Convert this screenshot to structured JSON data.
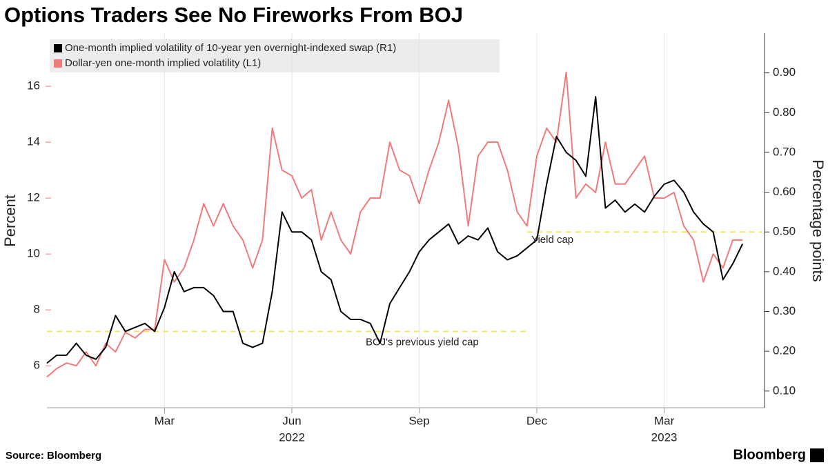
{
  "chart_data": {
    "type": "line",
    "title": "Options Traders See No Fireworks From BOJ",
    "y_label": "Percent",
    "y2_label": "Percentage points",
    "source": "Source: Bloomberg",
    "brand": "Bloomberg",
    "years": [
      "2022",
      "2023"
    ],
    "categories": [
      null,
      null,
      null,
      null,
      null,
      null,
      null,
      null,
      null,
      null,
      null,
      null,
      "Mar",
      null,
      null,
      null,
      null,
      null,
      null,
      null,
      null,
      null,
      null,
      null,
      null,
      "Jun",
      null,
      null,
      null,
      null,
      null,
      null,
      null,
      null,
      null,
      null,
      null,
      null,
      "Sep",
      null,
      null,
      null,
      null,
      null,
      null,
      null,
      null,
      null,
      null,
      null,
      "Dec",
      null,
      null,
      null,
      null,
      null,
      null,
      null,
      null,
      null,
      null,
      null,
      null,
      "Mar",
      null,
      null,
      null,
      null,
      null,
      null,
      null,
      null
    ],
    "series": [
      {
        "name": "One-month implied volatility of 10-year yen overnight-indexed swap (R1)",
        "color": "#000000",
        "axis": "y2",
        "values": [
          0.17,
          0.19,
          0.19,
          0.22,
          0.19,
          0.18,
          0.21,
          0.29,
          0.25,
          0.26,
          0.27,
          0.25,
          0.31,
          0.4,
          0.35,
          0.36,
          0.36,
          0.34,
          0.3,
          0.3,
          0.22,
          0.21,
          0.22,
          0.35,
          0.55,
          0.5,
          0.5,
          0.48,
          0.4,
          0.38,
          0.3,
          0.28,
          0.28,
          0.27,
          0.22,
          0.32,
          0.36,
          0.4,
          0.45,
          0.48,
          0.5,
          0.52,
          0.47,
          0.49,
          0.48,
          0.51,
          0.45,
          0.43,
          0.44,
          0.46,
          0.48,
          0.62,
          0.74,
          0.7,
          0.68,
          0.64,
          0.84,
          0.56,
          0.58,
          0.55,
          0.57,
          0.55,
          0.59,
          0.62,
          0.63,
          0.6,
          0.55,
          0.52,
          0.5,
          0.38,
          0.42,
          0.47
        ]
      },
      {
        "name": "Dollar-yen one-month implied volatility (L1)",
        "color": "#f07a78",
        "values": [
          5.6,
          5.9,
          6.1,
          6.0,
          6.5,
          6.0,
          6.8,
          6.5,
          7.2,
          7.0,
          7.3,
          7.3,
          9.8,
          9.0,
          9.5,
          10.5,
          11.8,
          11.0,
          11.8,
          11.0,
          10.5,
          9.5,
          10.5,
          14.5,
          13.0,
          12.8,
          12.0,
          12.3,
          10.5,
          11.5,
          10.5,
          10.0,
          11.5,
          12.0,
          12.0,
          14.0,
          13.0,
          12.8,
          11.8,
          13.0,
          14.0,
          15.5,
          13.8,
          11.0,
          13.5,
          14.0,
          14.0,
          13.0,
          11.5,
          11.0,
          13.5,
          14.5,
          14.0,
          16.5,
          12.0,
          12.5,
          12.2,
          14.0,
          12.5,
          12.5,
          13.0,
          13.5,
          12.0,
          12.0,
          12.2,
          11.0,
          10.5,
          9.0,
          10.0,
          9.5,
          10.5,
          10.5
        ]
      }
    ],
    "ylim": [
      4.5,
      17.9
    ],
    "yticks": [
      6,
      8,
      10,
      12,
      14,
      16
    ],
    "y2lim": [
      0.058,
      1.0
    ],
    "y2ticks": [
      {
        "value": 0.1,
        "label": "0.10"
      },
      {
        "value": 0.2,
        "label": "0.20"
      },
      {
        "value": 0.3,
        "label": "0.30"
      },
      {
        "value": 0.4,
        "label": "0.40"
      },
      {
        "value": 0.5,
        "label": "0.50"
      },
      {
        "value": 0.6,
        "label": "0.60"
      },
      {
        "value": 0.7,
        "label": "0.70"
      },
      {
        "value": 0.8,
        "label": "0.80"
      },
      {
        "value": 0.9,
        "label": "0.90"
      }
    ],
    "annotations": [
      {
        "text": "BOJ's previous yield cap",
        "value": 0.25,
        "axis": "y2"
      },
      {
        "text": "Yield cap",
        "value": 0.5,
        "axis": "y2"
      }
    ]
  }
}
